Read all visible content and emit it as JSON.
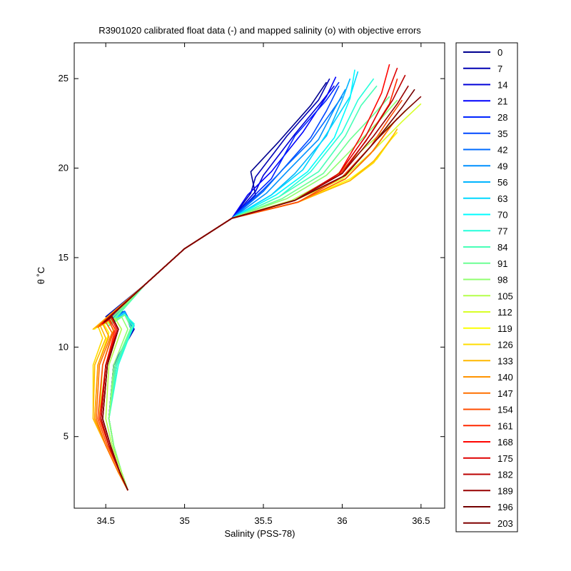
{
  "chart_data": {
    "type": "line",
    "title": "R3901020 calibrated float data (-) and mapped salinity (o) with objective errors",
    "xlabel": "Salinity (PSS-78)",
    "ylabel": "θ ˚C",
    "xlim": [
      34.3,
      36.65
    ],
    "ylim": [
      1,
      27
    ],
    "x_ticks": [
      34.5,
      35,
      35.5,
      36,
      36.5
    ],
    "x_tick_labels": [
      "34.5",
      "35",
      "35.5",
      "36",
      "36.5"
    ],
    "y_ticks": [
      5,
      10,
      15,
      20,
      25
    ],
    "y_tick_labels": [
      "5",
      "10",
      "15",
      "20",
      "25"
    ],
    "grid": false,
    "legend": "outside-right",
    "legend_entries": [
      "0",
      "7",
      "14",
      "21",
      "28",
      "35",
      "42",
      "49",
      "56",
      "63",
      "70",
      "77",
      "84",
      "91",
      "98",
      "105",
      "112",
      "119",
      "126",
      "133",
      "140",
      "147",
      "154",
      "161",
      "168",
      "175",
      "182",
      "189",
      "196",
      "203"
    ],
    "series_colors": [
      "#00008f",
      "#0000b4",
      "#0000d8",
      "#0000fd",
      "#0024ff",
      "#0048ff",
      "#006cff",
      "#0090ff",
      "#00b4ff",
      "#00d8ff",
      "#00fcff",
      "#24ffdb",
      "#48ffb7",
      "#6cff93",
      "#90ff6f",
      "#b4ff4b",
      "#d8ff27",
      "#fcff03",
      "#ffdc00",
      "#ffb800",
      "#ff9400",
      "#ff7000",
      "#ff4c00",
      "#ff2800",
      "#ff0400",
      "#df0000",
      "#bb0000",
      "#970000",
      "#730000",
      "#800000"
    ],
    "series": [
      {
        "name": "0",
        "x": [
          34.64,
          34.6,
          34.55,
          34.52,
          34.55,
          34.68,
          34.62,
          34.5,
          34.75,
          35.0,
          35.3,
          35.45,
          35.42,
          35.6,
          35.8,
          35.9
        ],
        "y": [
          2.0,
          3.0,
          4.5,
          6.0,
          9.0,
          11.0,
          12.0,
          11.6,
          13.5,
          15.5,
          17.2,
          18.5,
          19.8,
          21.5,
          23.5,
          24.8
        ]
      },
      {
        "name": "7",
        "x": [
          34.64,
          34.6,
          34.55,
          34.52,
          34.55,
          34.68,
          34.62,
          34.5,
          34.75,
          35.0,
          35.3,
          35.42,
          35.45,
          35.65,
          35.85,
          35.92
        ],
        "y": [
          2.0,
          3.0,
          4.5,
          6.0,
          9.0,
          11.0,
          12.0,
          11.7,
          13.5,
          15.5,
          17.2,
          18.6,
          19.5,
          21.8,
          23.8,
          25.0
        ]
      },
      {
        "name": "14",
        "x": [
          34.64,
          34.6,
          34.55,
          34.52,
          34.55,
          34.67,
          34.62,
          34.5,
          34.75,
          35.0,
          35.3,
          35.45,
          35.5,
          35.7,
          35.85,
          35.95
        ],
        "y": [
          2.0,
          3.0,
          4.5,
          6.0,
          9.0,
          11.0,
          12.0,
          11.5,
          13.5,
          15.5,
          17.2,
          18.7,
          19.6,
          21.9,
          23.5,
          24.6
        ]
      },
      {
        "name": "21",
        "x": [
          34.64,
          34.6,
          34.55,
          34.52,
          34.55,
          34.67,
          34.62,
          34.52,
          34.75,
          35.0,
          35.3,
          35.4,
          35.55,
          35.75,
          35.9,
          35.96
        ],
        "y": [
          2.0,
          3.0,
          4.5,
          6.0,
          9.0,
          11.0,
          12.0,
          11.6,
          13.5,
          15.5,
          17.2,
          18.5,
          19.8,
          22.0,
          24.0,
          25.1
        ]
      },
      {
        "name": "28",
        "x": [
          34.64,
          34.6,
          34.55,
          34.52,
          34.55,
          34.67,
          34.62,
          34.52,
          34.75,
          35.0,
          35.3,
          35.48,
          35.55,
          35.7,
          35.9,
          35.98
        ],
        "y": [
          2.0,
          3.0,
          4.5,
          6.0,
          9.0,
          11.0,
          12.0,
          11.5,
          13.5,
          15.5,
          17.2,
          18.8,
          19.4,
          21.8,
          23.8,
          24.8
        ]
      },
      {
        "name": "35",
        "x": [
          34.64,
          34.6,
          34.55,
          34.52,
          34.56,
          34.66,
          34.62,
          34.52,
          34.75,
          35.0,
          35.3,
          35.5,
          35.6,
          35.8,
          35.9,
          35.98
        ],
        "y": [
          2.0,
          3.0,
          4.5,
          6.0,
          9.0,
          11.0,
          12.0,
          11.4,
          13.5,
          15.5,
          17.2,
          18.8,
          19.7,
          21.7,
          23.2,
          24.6
        ]
      },
      {
        "name": "42",
        "x": [
          34.64,
          34.6,
          34.55,
          34.52,
          34.56,
          34.66,
          34.62,
          34.52,
          34.75,
          35.0,
          35.3,
          35.5,
          35.62,
          35.8,
          35.92,
          36.0
        ],
        "y": [
          2.0,
          3.0,
          4.5,
          6.0,
          9.0,
          11.0,
          12.0,
          11.4,
          13.5,
          15.5,
          17.2,
          18.7,
          19.9,
          21.5,
          23.0,
          24.0
        ]
      },
      {
        "name": "49",
        "x": [
          34.64,
          34.6,
          34.55,
          34.52,
          34.56,
          34.67,
          34.62,
          34.52,
          34.75,
          35.0,
          35.3,
          35.52,
          35.65,
          35.85,
          35.95,
          36.02
        ],
        "y": [
          2.0,
          3.0,
          4.5,
          6.0,
          9.0,
          11.0,
          12.0,
          11.4,
          13.5,
          15.5,
          17.2,
          18.6,
          19.8,
          21.6,
          23.3,
          24.4
        ]
      },
      {
        "name": "56",
        "x": [
          34.64,
          34.6,
          34.55,
          34.52,
          34.57,
          34.68,
          34.62,
          34.52,
          34.75,
          35.0,
          35.3,
          35.55,
          35.7,
          35.9,
          36.0,
          36.05
        ],
        "y": [
          2.0,
          3.0,
          4.5,
          6.0,
          9.0,
          11.2,
          11.9,
          11.3,
          13.5,
          15.5,
          17.2,
          18.5,
          19.7,
          21.8,
          23.8,
          25.0
        ]
      },
      {
        "name": "63",
        "x": [
          34.64,
          34.6,
          34.55,
          34.52,
          34.57,
          34.68,
          34.62,
          34.52,
          34.75,
          35.0,
          35.3,
          35.55,
          35.75,
          35.9,
          36.05,
          36.1
        ],
        "y": [
          2.0,
          3.0,
          4.5,
          6.0,
          9.0,
          11.2,
          11.9,
          11.3,
          13.5,
          15.5,
          17.2,
          18.5,
          19.9,
          21.9,
          24.0,
          25.4
        ]
      },
      {
        "name": "70",
        "x": [
          34.64,
          34.6,
          34.55,
          34.52,
          34.57,
          34.68,
          34.62,
          34.52,
          34.75,
          35.0,
          35.3,
          35.58,
          35.78,
          35.95,
          36.05,
          36.08
        ],
        "y": [
          2.0,
          3.0,
          4.5,
          6.0,
          9.0,
          11.3,
          11.8,
          11.2,
          13.5,
          15.5,
          17.2,
          18.5,
          19.8,
          21.7,
          23.9,
          25.5
        ]
      },
      {
        "name": "77",
        "x": [
          34.64,
          34.6,
          34.55,
          34.52,
          34.58,
          34.68,
          34.62,
          34.52,
          34.75,
          35.0,
          35.3,
          35.6,
          35.8,
          36.0,
          36.1,
          36.2
        ],
        "y": [
          2.0,
          3.0,
          4.5,
          6.0,
          9.0,
          11.3,
          11.8,
          11.2,
          13.5,
          15.5,
          17.2,
          18.4,
          19.8,
          22.0,
          23.8,
          25.0
        ]
      },
      {
        "name": "84",
        "x": [
          34.64,
          34.6,
          34.55,
          34.52,
          34.57,
          34.67,
          34.62,
          34.52,
          34.75,
          35.0,
          35.3,
          35.6,
          35.85,
          36.02,
          36.12,
          36.22
        ],
        "y": [
          2.0,
          3.0,
          4.5,
          6.0,
          9.0,
          11.2,
          11.8,
          11.2,
          13.5,
          15.5,
          17.2,
          18.4,
          19.8,
          21.8,
          23.5,
          24.6
        ]
      },
      {
        "name": "91",
        "x": [
          34.64,
          34.6,
          34.55,
          34.52,
          34.56,
          34.66,
          34.62,
          34.52,
          34.75,
          35.0,
          35.3,
          35.62,
          35.88,
          36.05,
          36.2,
          36.3
        ],
        "y": [
          2.0,
          3.0,
          4.5,
          6.0,
          9.0,
          11.1,
          11.8,
          11.3,
          13.5,
          15.5,
          17.2,
          18.3,
          19.7,
          21.6,
          23.0,
          24.0
        ]
      },
      {
        "name": "98",
        "x": [
          34.64,
          34.6,
          34.55,
          34.52,
          34.55,
          34.64,
          34.6,
          34.5,
          34.75,
          35.0,
          35.3,
          35.65,
          35.9,
          36.1,
          36.25,
          36.35
        ],
        "y": [
          2.0,
          3.0,
          4.5,
          6.0,
          9.0,
          11.0,
          11.7,
          11.3,
          13.5,
          15.5,
          17.2,
          18.3,
          19.6,
          21.4,
          22.8,
          23.8
        ]
      },
      {
        "name": "105",
        "x": [
          34.64,
          34.6,
          34.54,
          34.5,
          34.52,
          34.6,
          34.56,
          34.47,
          34.75,
          35.0,
          35.3,
          35.68,
          35.95,
          36.15,
          36.32,
          36.45
        ],
        "y": [
          2.0,
          3.0,
          4.5,
          6.0,
          9.0,
          11.0,
          11.6,
          11.2,
          13.5,
          15.5,
          17.2,
          18.2,
          19.5,
          21.2,
          22.5,
          23.6
        ]
      },
      {
        "name": "112",
        "x": [
          34.64,
          34.59,
          34.52,
          34.46,
          34.48,
          34.55,
          34.5,
          34.45,
          34.75,
          35.0,
          35.3,
          35.7,
          36.0,
          36.2,
          36.38,
          36.5
        ],
        "y": [
          2.0,
          3.0,
          4.5,
          6.0,
          9.0,
          11.0,
          11.6,
          11.1,
          13.5,
          15.5,
          17.2,
          18.2,
          19.4,
          21.0,
          22.6,
          23.6
        ]
      },
      {
        "name": "119",
        "x": [
          34.64,
          34.58,
          34.5,
          34.43,
          34.45,
          34.52,
          34.48,
          34.43,
          34.75,
          35.0,
          35.3,
          35.72,
          36.05,
          36.22,
          36.3,
          36.35
        ],
        "y": [
          2.0,
          3.0,
          4.5,
          6.0,
          9.0,
          10.8,
          11.4,
          11.0,
          13.5,
          15.5,
          17.2,
          18.1,
          19.4,
          20.5,
          21.5,
          22.0
        ]
      },
      {
        "name": "126",
        "x": [
          34.64,
          34.58,
          34.5,
          34.42,
          34.42,
          34.48,
          34.45,
          34.42,
          34.75,
          35.0,
          35.3,
          35.72,
          36.05,
          36.2,
          36.28,
          36.32
        ],
        "y": [
          2.0,
          3.0,
          4.5,
          6.0,
          9.0,
          10.5,
          11.2,
          11.0,
          13.5,
          15.5,
          17.2,
          18.1,
          19.3,
          20.3,
          21.3,
          21.8
        ]
      },
      {
        "name": "133",
        "x": [
          34.64,
          34.58,
          34.5,
          34.42,
          34.43,
          34.5,
          34.46,
          34.42,
          34.75,
          35.0,
          35.3,
          35.72,
          36.05,
          36.2,
          36.3,
          36.35
        ],
        "y": [
          2.0,
          3.0,
          4.5,
          6.0,
          9.0,
          10.5,
          11.3,
          11.0,
          13.5,
          15.5,
          17.2,
          18.1,
          19.3,
          20.4,
          21.5,
          22.2
        ]
      },
      {
        "name": "140",
        "x": [
          34.64,
          34.58,
          34.5,
          34.43,
          34.45,
          34.52,
          34.48,
          34.44,
          34.75,
          35.0,
          35.3,
          35.72,
          36.02,
          36.18,
          36.28,
          36.35
        ],
        "y": [
          2.0,
          3.0,
          4.5,
          6.0,
          9.0,
          10.6,
          11.3,
          11.1,
          13.5,
          15.5,
          17.2,
          18.1,
          19.4,
          20.8,
          22.0,
          22.8
        ]
      },
      {
        "name": "147",
        "x": [
          34.64,
          34.58,
          34.5,
          34.44,
          34.46,
          34.54,
          34.5,
          34.45,
          34.75,
          35.0,
          35.3,
          35.72,
          36.02,
          36.2,
          36.32,
          36.4
        ],
        "y": [
          2.0,
          3.0,
          4.5,
          6.0,
          9.0,
          10.8,
          11.4,
          11.1,
          13.5,
          15.5,
          17.2,
          18.1,
          19.4,
          21.0,
          22.5,
          23.2
        ]
      },
      {
        "name": "154",
        "x": [
          34.64,
          34.59,
          34.51,
          34.45,
          34.48,
          34.55,
          34.52,
          34.46,
          34.75,
          35.0,
          35.3,
          35.72,
          36.0,
          36.18,
          36.3,
          36.38
        ],
        "y": [
          2.0,
          3.0,
          4.5,
          6.0,
          9.0,
          10.9,
          11.5,
          11.2,
          13.5,
          15.5,
          17.2,
          18.1,
          19.5,
          21.2,
          22.8,
          23.8
        ]
      },
      {
        "name": "161",
        "x": [
          34.64,
          34.59,
          34.52,
          34.46,
          34.5,
          34.56,
          34.52,
          34.47,
          34.75,
          35.0,
          35.3,
          35.7,
          35.98,
          36.15,
          36.3,
          36.35
        ],
        "y": [
          2.0,
          3.0,
          4.5,
          6.0,
          9.0,
          11.0,
          11.6,
          11.3,
          13.5,
          15.5,
          17.2,
          18.2,
          19.6,
          21.5,
          23.6,
          25.0
        ]
      },
      {
        "name": "168",
        "x": [
          34.64,
          34.59,
          34.52,
          34.47,
          34.5,
          34.57,
          34.53,
          34.48,
          34.75,
          35.0,
          35.3,
          35.7,
          35.98,
          36.12,
          36.25,
          36.3
        ],
        "y": [
          2.0,
          3.0,
          4.5,
          6.0,
          9.0,
          11.0,
          11.7,
          11.3,
          13.5,
          15.5,
          17.2,
          18.2,
          19.7,
          21.8,
          24.2,
          25.8
        ]
      },
      {
        "name": "175",
        "x": [
          34.64,
          34.59,
          34.52,
          34.47,
          34.5,
          34.58,
          34.54,
          34.48,
          34.75,
          35.0,
          35.3,
          35.7,
          35.98,
          36.15,
          36.28,
          36.35
        ],
        "y": [
          2.0,
          3.0,
          4.5,
          6.0,
          9.0,
          11.0,
          11.7,
          11.3,
          13.5,
          15.5,
          17.2,
          18.2,
          19.7,
          21.8,
          24.0,
          25.6
        ]
      },
      {
        "name": "182",
        "x": [
          34.64,
          34.59,
          34.52,
          34.47,
          34.5,
          34.58,
          34.54,
          34.49,
          34.75,
          35.0,
          35.3,
          35.7,
          36.0,
          36.18,
          36.32,
          36.4
        ],
        "y": [
          2.0,
          3.0,
          4.5,
          6.0,
          9.0,
          11.0,
          11.7,
          11.4,
          13.5,
          15.5,
          17.2,
          18.2,
          19.7,
          21.9,
          23.8,
          25.2
        ]
      },
      {
        "name": "189",
        "x": [
          34.64,
          34.59,
          34.53,
          34.48,
          34.51,
          34.58,
          34.54,
          34.49,
          34.75,
          35.0,
          35.3,
          35.7,
          36.0,
          36.2,
          36.35,
          36.42
        ],
        "y": [
          2.0,
          3.0,
          4.5,
          6.0,
          9.0,
          11.0,
          11.7,
          11.4,
          13.5,
          15.5,
          17.2,
          18.2,
          19.7,
          21.8,
          23.6,
          24.6
        ]
      },
      {
        "name": "196",
        "x": [
          34.64,
          34.59,
          34.53,
          34.48,
          34.51,
          34.58,
          34.54,
          34.49,
          34.75,
          35.0,
          35.3,
          35.7,
          36.02,
          36.22,
          36.38,
          36.46
        ],
        "y": [
          2.0,
          3.0,
          4.5,
          6.0,
          9.0,
          11.0,
          11.7,
          11.4,
          13.5,
          15.5,
          17.2,
          18.2,
          19.6,
          21.6,
          23.4,
          24.4
        ]
      },
      {
        "name": "203",
        "x": [
          34.64,
          34.59,
          34.53,
          34.48,
          34.51,
          34.58,
          34.54,
          34.49,
          34.75,
          35.0,
          35.3,
          35.7,
          36.02,
          36.22,
          36.4,
          36.5
        ],
        "y": [
          2.0,
          3.0,
          4.5,
          6.0,
          9.0,
          11.0,
          11.7,
          11.4,
          13.5,
          15.5,
          17.2,
          18.2,
          19.6,
          21.6,
          23.2,
          24.0
        ]
      }
    ]
  }
}
